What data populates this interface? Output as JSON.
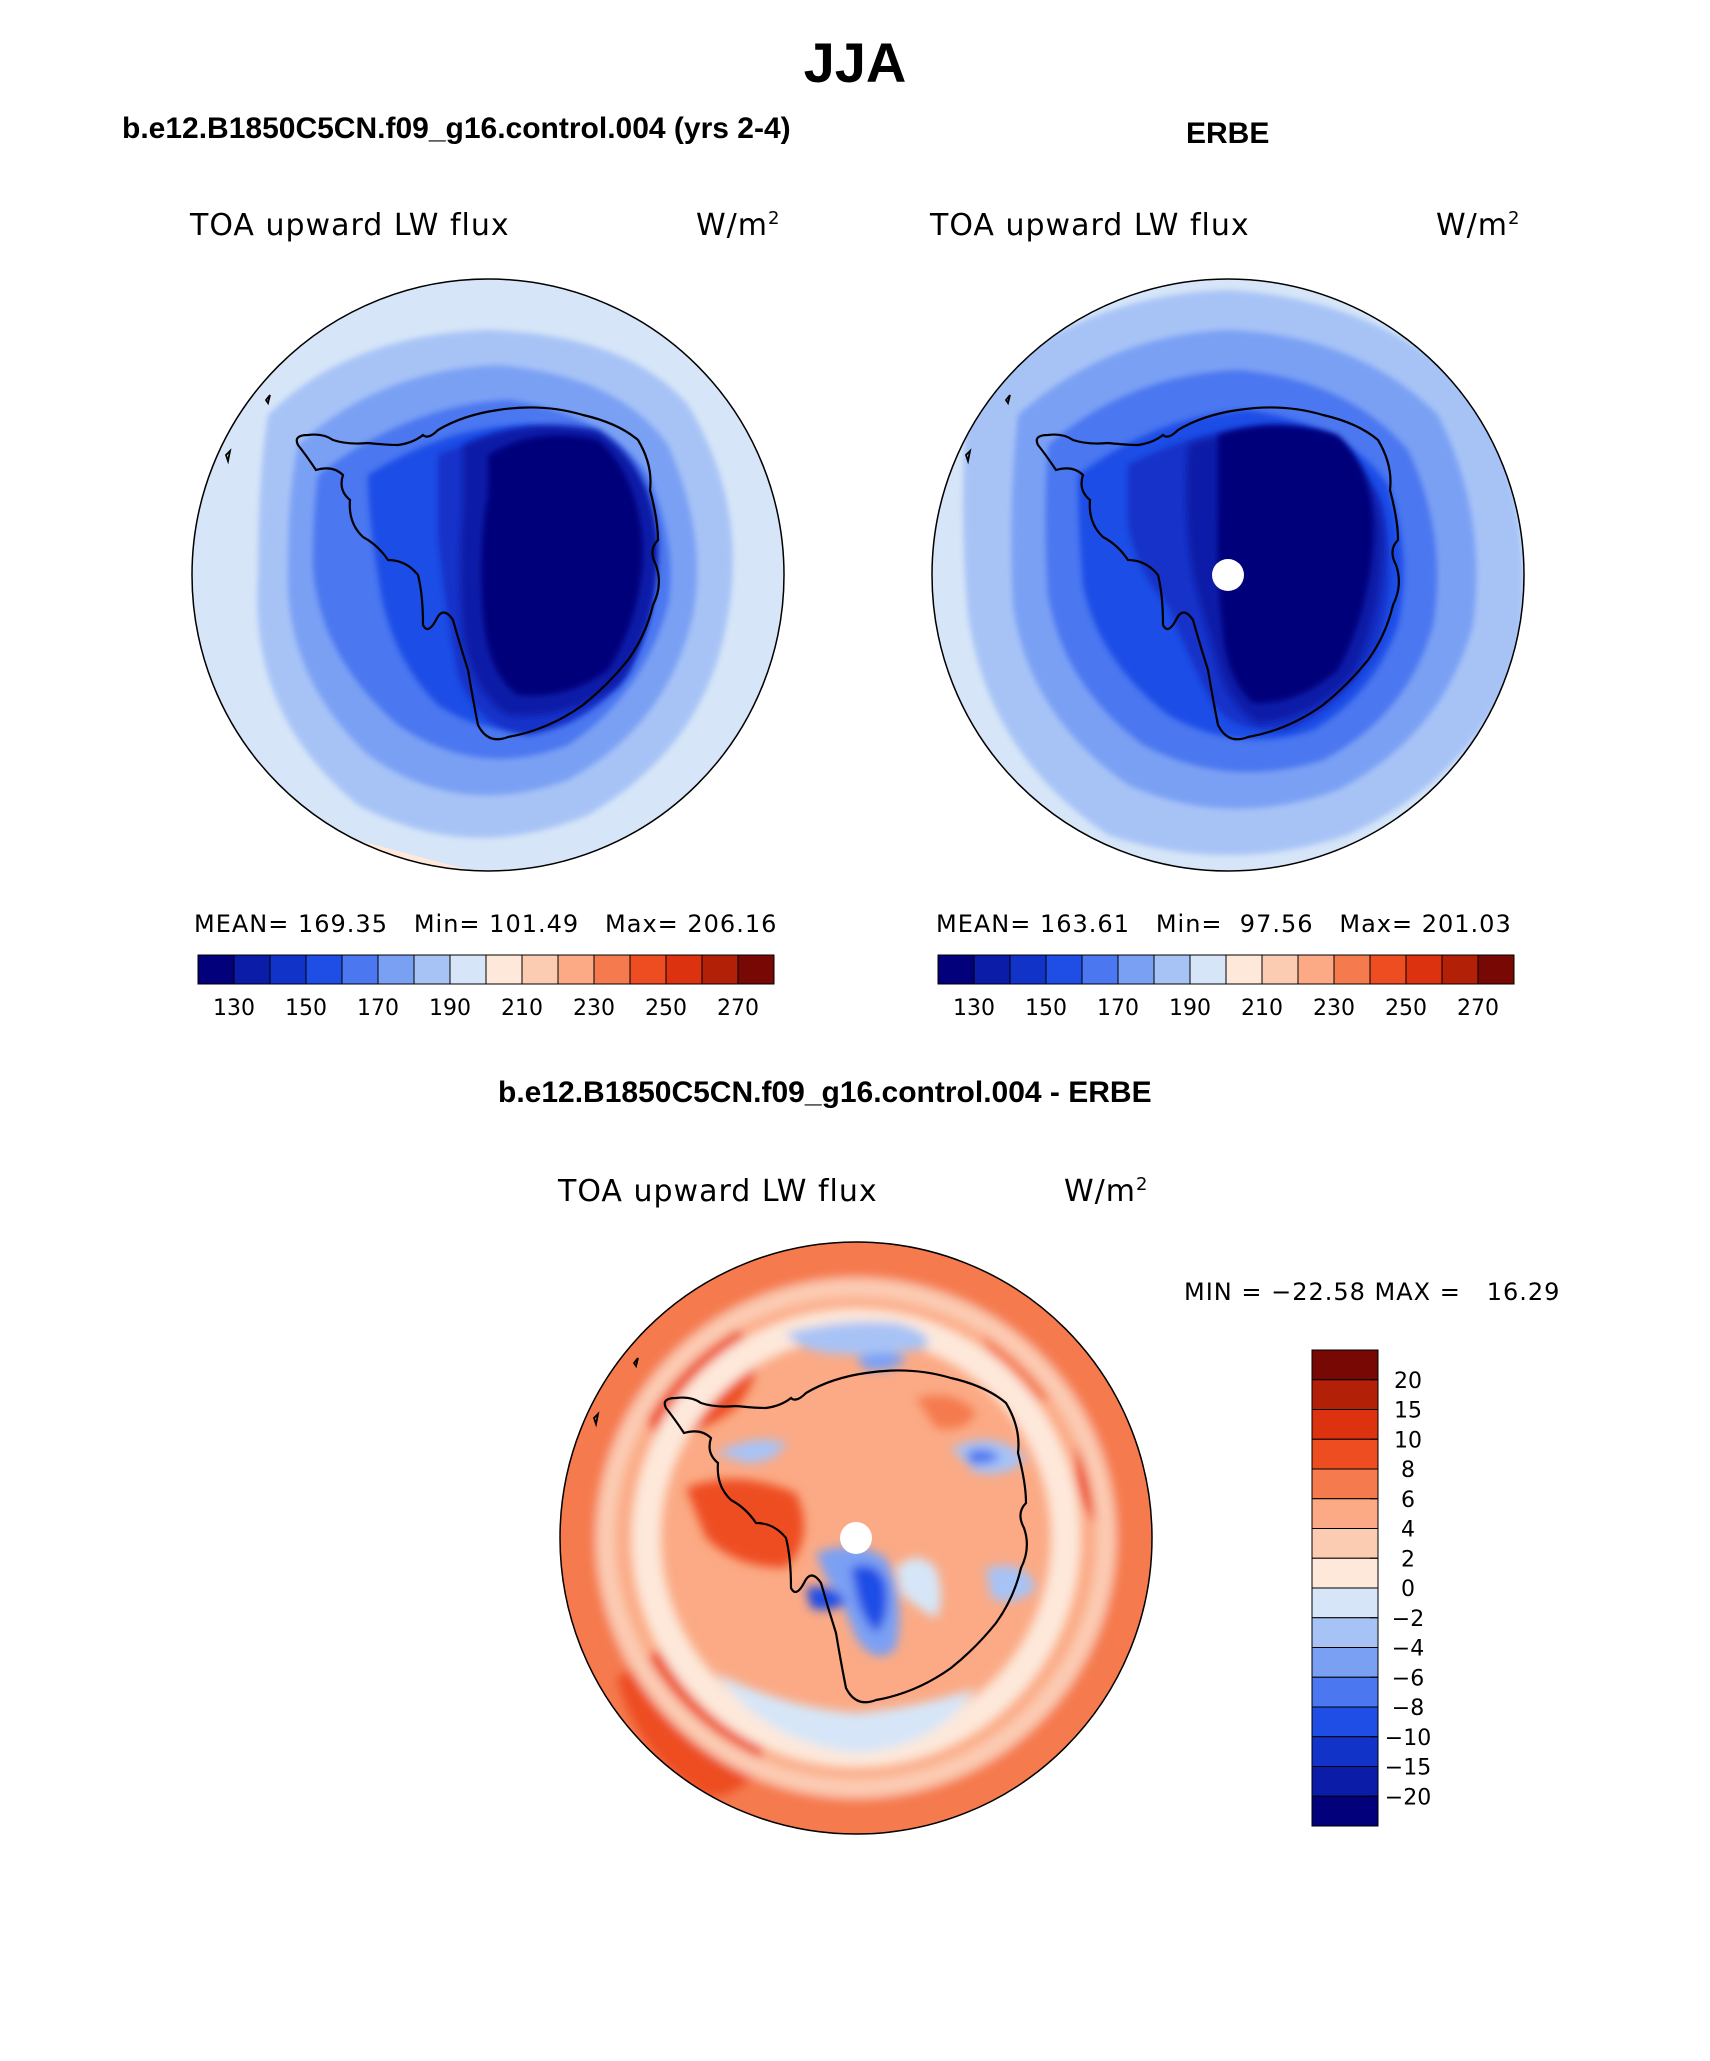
{
  "title": "JJA",
  "panels": {
    "model": {
      "heading": "b.e12.B1850C5CN.f09_g16.control.004 (yrs 2-4)",
      "variable": "TOA upward LW flux",
      "units_base": "W/m",
      "units_exp": "2",
      "stats": "MEAN= 169.35   Min= 101.49   Max= 206.16"
    },
    "obs": {
      "heading": "ERBE",
      "variable": "TOA upward LW flux",
      "units_base": "W/m",
      "units_exp": "2",
      "stats": "MEAN= 163.61   Min=  97.56   Max= 201.03"
    },
    "diff": {
      "heading": "b.e12.B1850C5CN.f09_g16.control.004 - ERBE",
      "variable": "TOA upward LW flux",
      "units_base": "W/m",
      "units_exp": "2",
      "minmax": "MIN = −22.58 MAX =   16.29"
    }
  },
  "colorbars": {
    "absolute": {
      "colors": [
        "#02007a",
        "#0a1ca8",
        "#1233c8",
        "#1e4ee6",
        "#4b77f0",
        "#7aa0f4",
        "#a7c3f6",
        "#d6e6f8",
        "#fde8da",
        "#fbcbb2",
        "#fbaa85",
        "#f57a4e",
        "#ee4d22",
        "#dc3210",
        "#b32008",
        "#780804"
      ],
      "labels": [
        "130",
        "150",
        "170",
        "190",
        "210",
        "230",
        "250",
        "270"
      ]
    },
    "difference": {
      "colors": [
        "#780804",
        "#b32008",
        "#dc3210",
        "#ee4d22",
        "#f57a4e",
        "#fbaa85",
        "#fbcbb2",
        "#fde8da",
        "#d6e6f8",
        "#a7c3f6",
        "#7aa0f4",
        "#4b77f0",
        "#1e4ee6",
        "#1233c8",
        "#0a1ca8",
        "#02007a"
      ],
      "labels": [
        "20",
        "15",
        "10",
        "8",
        "6",
        "4",
        "2",
        "0",
        "−2",
        "−4",
        "−6",
        "−8",
        "−10",
        "−15",
        "−20"
      ]
    }
  }
}
